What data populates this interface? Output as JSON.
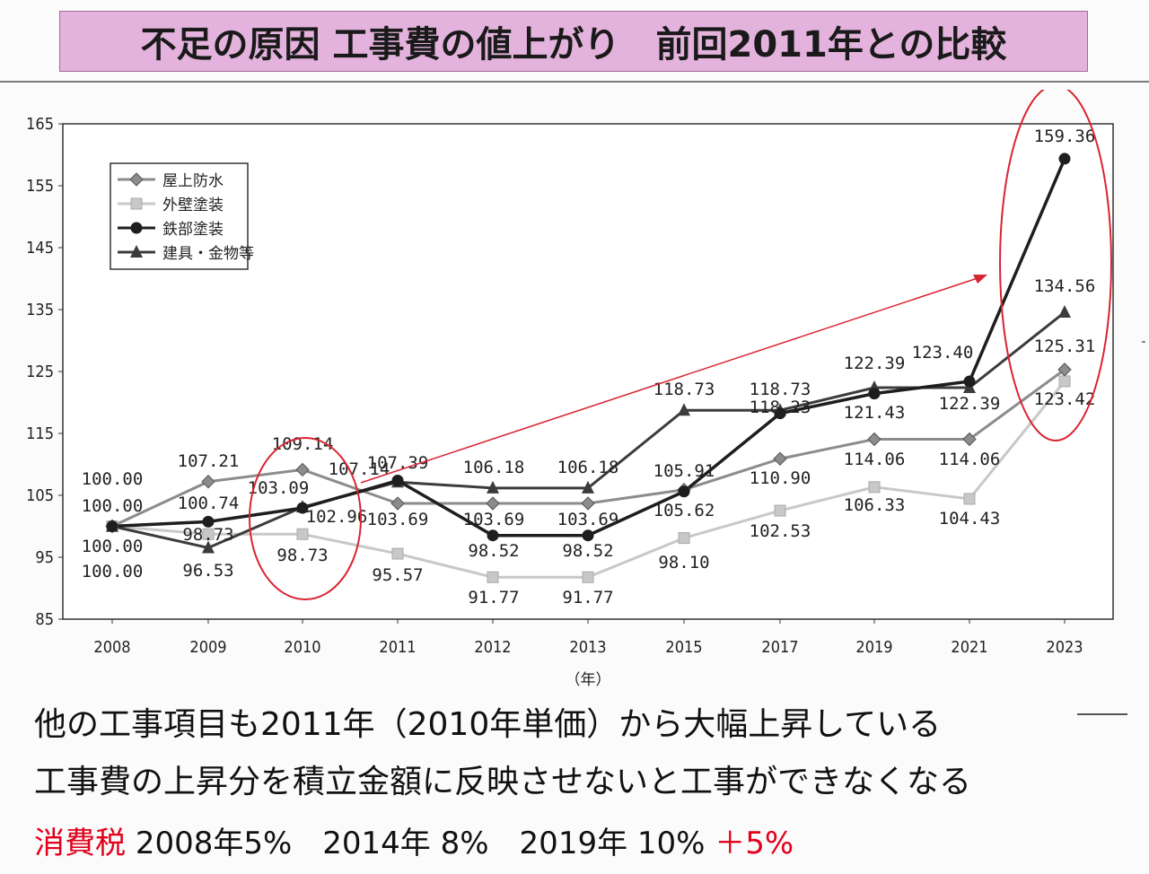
{
  "title": "不足の原因 工事費の値上がり　前回2011年との比較",
  "chart_data": {
    "type": "line",
    "title": "",
    "xlabel": "（年）",
    "ylabel": "",
    "ylim": [
      85,
      165
    ],
    "yticks": [
      165,
      155,
      145,
      135,
      125,
      115,
      105,
      95,
      85
    ],
    "categories": [
      "2008",
      "2009",
      "2010",
      "2011",
      "2012",
      "2013",
      "2015",
      "2017",
      "2019",
      "2021",
      "2023"
    ],
    "series": [
      {
        "name": "屋上防水",
        "marker": "diamond",
        "color": "#8c8c8c",
        "values": [
          100.0,
          107.21,
          109.14,
          103.69,
          103.69,
          103.69,
          105.91,
          110.9,
          114.06,
          114.06,
          125.31
        ]
      },
      {
        "name": "外壁塗装",
        "marker": "square",
        "color": "#c8c8c8",
        "values": [
          100.0,
          98.73,
          98.73,
          95.57,
          91.77,
          91.77,
          98.1,
          102.53,
          106.33,
          104.43,
          123.42
        ]
      },
      {
        "name": "鉄部塗装",
        "marker": "circle",
        "color": "#1e1e1e",
        "values": [
          100.0,
          100.74,
          102.96,
          107.39,
          98.52,
          98.52,
          105.62,
          118.23,
          121.43,
          123.4,
          159.36
        ]
      },
      {
        "name": "建具・金物等",
        "marker": "triangle",
        "color": "#3c3c3c",
        "values": [
          100.0,
          96.53,
          103.09,
          107.14,
          106.18,
          106.18,
          118.73,
          118.73,
          122.39,
          122.39,
          134.56
        ]
      }
    ],
    "data_labels": [
      [
        "100.00",
        "107.21",
        "109.14",
        "103.69",
        "103.69",
        "103.69",
        "105.91",
        "110.90",
        "114.06",
        "114.06",
        "125.31"
      ],
      [
        "100.00",
        "98.73",
        "98.73",
        "95.57",
        "91.77",
        "91.77",
        "98.10",
        "102.53",
        "106.33",
        "104.43",
        "123.42"
      ],
      [
        "100.00",
        "100.74",
        "102.96",
        "107.39",
        "98.52",
        "98.52",
        "105.62",
        "118.23",
        "121.43",
        "123.40",
        "159.36"
      ],
      [
        "100.00",
        "96.53",
        "103.09",
        "107.14",
        "106.18",
        "106.18",
        "118.73",
        "118.73",
        "122.39",
        "122.39",
        "134.56"
      ]
    ],
    "legend_position": "top-left",
    "annotations": [
      "red ellipse around 2010",
      "red ellipse around 2023",
      "red arrow from 2010 toward 2023"
    ]
  },
  "notes": {
    "line1": "他の工事項目も2011年（2010年単価）から大幅上昇している",
    "line2": "工事費の上昇分を積立金額に反映させないと工事ができなくなる",
    "tax_label": "消費税",
    "tax_text": "2008年5%　2014年 8%　2019年 10%",
    "tax_increase": "＋5%"
  },
  "colors": {
    "accent_red": "#e2001a",
    "title_bg": "#e4b3dd"
  }
}
